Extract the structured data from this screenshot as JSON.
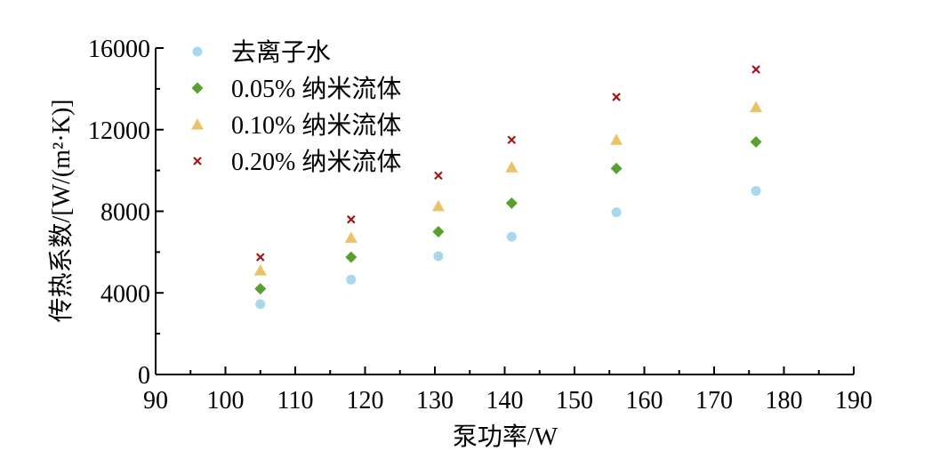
{
  "chart_data": {
    "type": "scatter",
    "title": "",
    "xlabel": "泵功率/W",
    "ylabel": "传热系数/[W/(m²·K)]",
    "xlim": [
      90,
      190
    ],
    "ylim": [
      0,
      16000
    ],
    "x_ticks": [
      90,
      100,
      110,
      120,
      130,
      140,
      150,
      160,
      170,
      180,
      190
    ],
    "y_ticks": [
      0,
      4000,
      8000,
      12000,
      16000
    ],
    "legend_position": "top-left",
    "grid": false,
    "series": [
      {
        "name": "去离子水",
        "marker": "circle",
        "color": "#a9d8ec",
        "x": [
          105,
          118,
          130.5,
          141,
          156,
          176
        ],
        "y": [
          3450,
          4650,
          5800,
          6750,
          7950,
          9000
        ]
      },
      {
        "name": "0.05% 纳米流体",
        "marker": "diamond",
        "color": "#5aa02c",
        "x": [
          105,
          118,
          130.5,
          141,
          156,
          176
        ],
        "y": [
          4200,
          5750,
          7000,
          8400,
          10100,
          11400
        ]
      },
      {
        "name": "0.10% 纳米流体",
        "marker": "triangle",
        "color": "#e8c466",
        "x": [
          105,
          118,
          130.5,
          141,
          156,
          176
        ],
        "y": [
          5100,
          6700,
          8250,
          10150,
          11500,
          13100
        ]
      },
      {
        "name": "0.20% 纳米流体",
        "marker": "x",
        "color": "#a01818",
        "x": [
          105,
          118,
          130.5,
          141,
          156,
          176
        ],
        "y": [
          5750,
          7600,
          9750,
          11500,
          13600,
          14950
        ]
      }
    ]
  }
}
